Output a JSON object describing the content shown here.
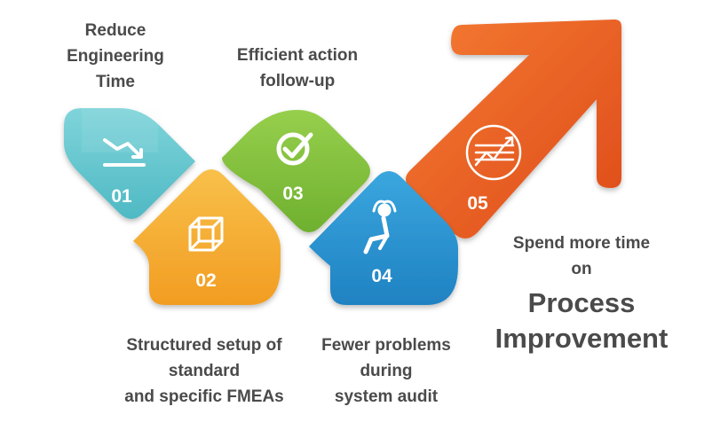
{
  "steps": [
    {
      "number": "01",
      "icon": "trend-down-icon",
      "color": "#6fcbd3",
      "label_lines": [
        "Reduce",
        "Engineering",
        "Time"
      ]
    },
    {
      "number": "02",
      "icon": "cube-icon",
      "color": "#f6b13b",
      "label_lines": [
        "Structured setup of",
        "standard",
        "and specific FMEAs"
      ]
    },
    {
      "number": "03",
      "icon": "checkmark-icon",
      "color": "#86c440",
      "label_lines": [
        "Efficient action",
        "follow-up"
      ]
    },
    {
      "number": "04",
      "icon": "relaxed-person-icon",
      "color": "#2e9ad6",
      "label_lines": [
        "Fewer problems",
        "during",
        "system audit"
      ]
    },
    {
      "number": "05",
      "icon": "growth-chart-icon",
      "color": "#e8541e",
      "label_lines": [
        "Spend more time",
        "on"
      ]
    }
  ],
  "final_emphasis": [
    "Process",
    "Improvement"
  ],
  "colors": {
    "text": "#4a4a4a",
    "arrow": "#e8541e",
    "arrow_light": "#f28a3a"
  }
}
